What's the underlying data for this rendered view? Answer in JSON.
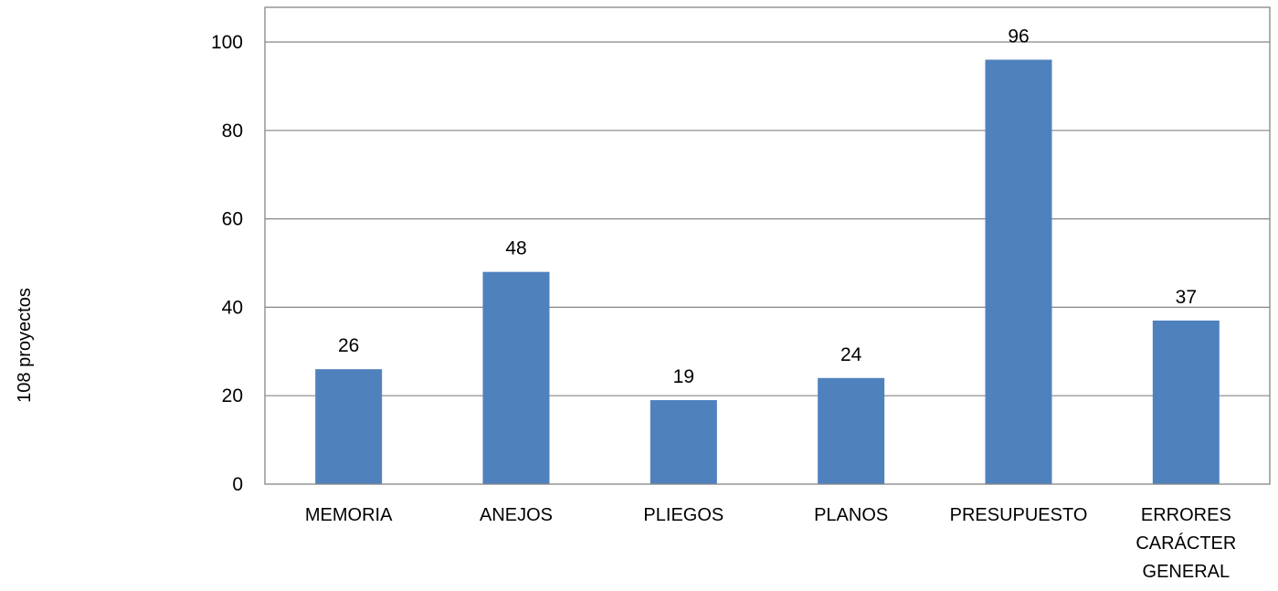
{
  "chart_data": {
    "type": "bar",
    "title": "",
    "xlabel": "",
    "ylabel": "108 proyectos",
    "categories": [
      [
        "MEMORIA"
      ],
      [
        "ANEJOS"
      ],
      [
        "PLIEGOS"
      ],
      [
        "PLANOS"
      ],
      [
        "PRESUPUESTO"
      ],
      [
        "ERRORES",
        "CARÁCTER",
        "GENERAL"
      ]
    ],
    "values": [
      26,
      48,
      19,
      24,
      96,
      37
    ],
    "data_labels": [
      "26",
      "48",
      "19",
      "24",
      "96",
      "37"
    ],
    "ylim": [
      0,
      100
    ],
    "yticks": [
      0,
      20,
      40,
      60,
      80,
      100
    ],
    "grid": true,
    "legend": "none",
    "bar_color": "#4F81BD",
    "grid_color": "#868686"
  }
}
